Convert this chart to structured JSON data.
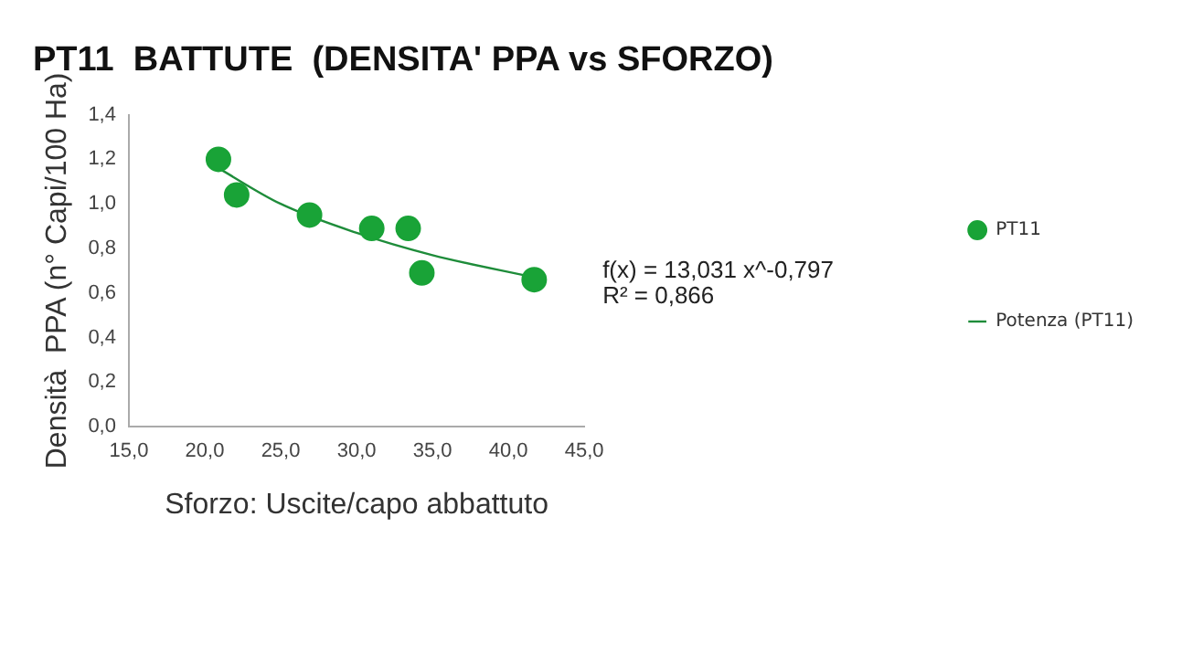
{
  "chart_data": {
    "type": "scatter",
    "title": "PT11  BATTUTE  (DENSITA' PPA vs SFORZO)",
    "xlabel": "Sforzo: Uscite/capo abbattuto",
    "ylabel": "Densità  PPA (n° Capi/100 Ha)",
    "series": [
      {
        "name": "PT11",
        "color": "#19a337",
        "marker": "circle",
        "x": [
          20.9,
          22.1,
          26.9,
          31.0,
          33.4,
          34.3,
          41.7
        ],
        "values": [
          1.2,
          1.04,
          0.95,
          0.89,
          0.89,
          0.69,
          0.66
        ]
      },
      {
        "name": "Potenza (PT11)",
        "type": "line",
        "marker": "none",
        "color": "#1e8c3a",
        "x": [
          20.9,
          25,
          30,
          35,
          41.7
        ],
        "values": [
          1.16,
          1.0,
          0.87,
          0.77,
          0.67
        ]
      }
    ],
    "xlim": [
      15,
      45
    ],
    "xticks": [
      {
        "value": 15,
        "label": "15,0"
      },
      {
        "value": 20,
        "label": "20,0"
      },
      {
        "value": 25,
        "label": "25,0"
      },
      {
        "value": 30,
        "label": "30,0"
      },
      {
        "value": 35,
        "label": "35,0"
      },
      {
        "value": 40,
        "label": "40,0"
      },
      {
        "value": 45,
        "label": "45,0"
      }
    ],
    "ylim": [
      0,
      1.4
    ],
    "yticks": [
      {
        "value": 0,
        "label": "0,0"
      },
      {
        "value": 0.2,
        "label": "0,2"
      },
      {
        "value": 0.4,
        "label": "0,4"
      },
      {
        "value": 0.6,
        "label": "0,6"
      },
      {
        "value": 0.8,
        "label": "0,8"
      },
      {
        "value": 1.0,
        "label": "1,0"
      },
      {
        "value": 1.2,
        "label": "1,2"
      },
      {
        "value": 1.4,
        "label": "1,4"
      }
    ],
    "annotations": [
      "f(x) = 13,031 x^-0,797",
      "R² = 0,866"
    ],
    "grid": false,
    "legend": "right"
  }
}
